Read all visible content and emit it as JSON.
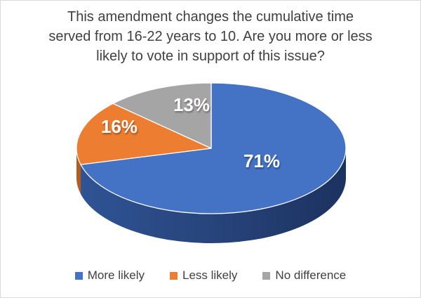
{
  "window": {
    "background": "#ffffff",
    "border_color": "#d9d9d9",
    "text_color": "#404040"
  },
  "chart_data": {
    "type": "pie",
    "is_3d": true,
    "title": "This amendment changes the cumulative time served from 16-22 years to 10. Are you more or less likely to vote in support of this issue?",
    "title_lines": [
      "This amendment changes the cumulative time",
      "served from 16-22 years to 10. Are you more or less",
      "likely to vote in support of this issue?"
    ],
    "categories": [
      "More likely",
      "Less likely",
      "No difference"
    ],
    "values": [
      71,
      16,
      13
    ],
    "unit": "%",
    "start_angle_deg": 0,
    "direction": "clockwise",
    "data_label_color": "#FFFFFF",
    "slices": [
      {
        "name": "More likely",
        "value": 71,
        "label": "71%",
        "color": "#4472C4",
        "side_color": "#27447B"
      },
      {
        "name": "Less likely",
        "value": 16,
        "label": "16%",
        "color": "#ED7D31",
        "side_color": "#B55B1D"
      },
      {
        "name": "No difference",
        "value": 13,
        "label": "13%",
        "color": "#A5A5A5",
        "side_color": "#7F7F7F"
      }
    ],
    "legend": {
      "position": "bottom",
      "entries": [
        "More likely",
        "Less likely",
        "No difference"
      ]
    }
  }
}
